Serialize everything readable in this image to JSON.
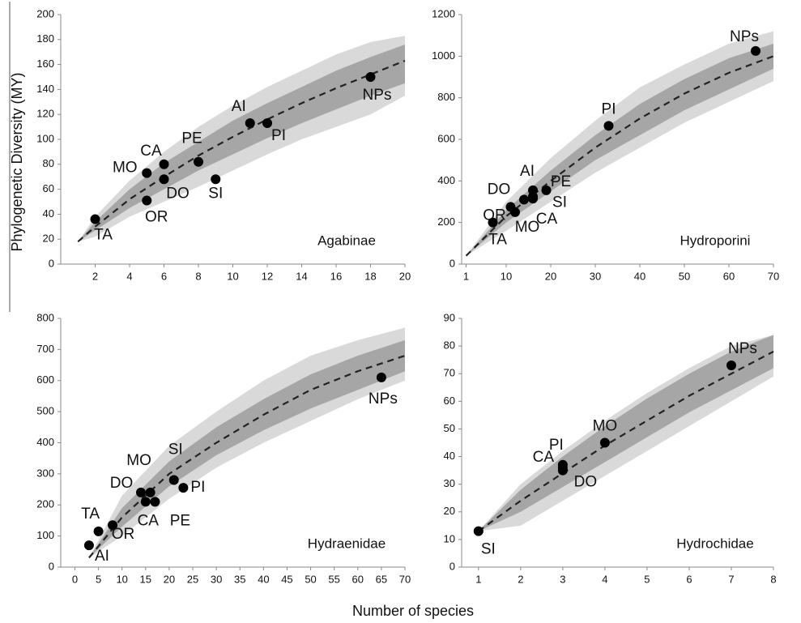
{
  "xlabel": "Number of species",
  "ylabel": "Phylogenetic Diversity (MY)",
  "chart_data": [
    {
      "type": "scatter",
      "title": "Agabinae",
      "labels": [
        "TA",
        "OR",
        "MO",
        "CA",
        "DO",
        "PE",
        "SI",
        "AI",
        "PI",
        "NPs"
      ],
      "x": [
        2,
        5,
        5,
        6,
        6,
        8,
        9,
        11,
        12,
        18
      ],
      "values": [
        36,
        51,
        73,
        80,
        68,
        82,
        68,
        113,
        113,
        150
      ],
      "color": "#000000",
      "xlim": [
        0,
        20
      ],
      "xticks": [
        2,
        4,
        6,
        8,
        10,
        12,
        14,
        16,
        18,
        20
      ],
      "ylim": [
        0,
        200
      ],
      "yticks": [
        0,
        20,
        40,
        60,
        80,
        100,
        120,
        140,
        160,
        180,
        200
      ],
      "curve": {
        "x": [
          1,
          2,
          4,
          6,
          8,
          10,
          12,
          14,
          16,
          18,
          20
        ],
        "values": [
          18,
          30,
          52,
          70,
          87,
          102,
          116,
          129,
          141,
          152,
          163
        ],
        "color": "#222222",
        "inner_band": {
          "lower": [
            18,
            27,
            45,
            60,
            75,
            88,
            101,
            113,
            124,
            135,
            145
          ],
          "upper": [
            18,
            34,
            60,
            81,
            98,
            115,
            129,
            142,
            155,
            166,
            176
          ],
          "color": "#a6a6a6"
        },
        "outer_band": {
          "lower": [
            18,
            22,
            38,
            50,
            62,
            75,
            88,
            100,
            110,
            120,
            135
          ],
          "upper": [
            18,
            38,
            67,
            90,
            110,
            127,
            142,
            155,
            168,
            178,
            183
          ],
          "color": "#d9d9d9"
        }
      }
    },
    {
      "type": "scatter",
      "title": "Hydroporini",
      "labels": [
        "TA",
        "MO",
        "OR",
        "DO",
        "AI",
        "SI",
        "CA",
        "PE",
        "PI",
        "NPs"
      ],
      "x": [
        7,
        12,
        11,
        14,
        16,
        16,
        16,
        19,
        33,
        66
      ],
      "values": [
        200,
        250,
        275,
        310,
        355,
        325,
        315,
        355,
        665,
        1025
      ],
      "color": "#000000",
      "xlim": [
        0,
        70
      ],
      "xticks": [
        1,
        10,
        20,
        30,
        40,
        50,
        60,
        70
      ],
      "ylim": [
        0,
        1200
      ],
      "yticks": [
        0,
        200,
        400,
        600,
        800,
        1000,
        1200
      ],
      "curve": {
        "x": [
          1,
          10,
          20,
          30,
          40,
          50,
          60,
          70
        ],
        "values": [
          40,
          230,
          400,
          560,
          700,
          820,
          920,
          1000
        ],
        "color": "#222222",
        "inner_band": {
          "lower": [
            40,
            200,
            350,
            500,
            620,
            740,
            840,
            940
          ],
          "upper": [
            40,
            260,
            450,
            620,
            770,
            890,
            990,
            1060
          ],
          "color": "#a6a6a6"
        },
        "outer_band": {
          "lower": [
            40,
            160,
            300,
            440,
            560,
            680,
            780,
            880
          ],
          "upper": [
            40,
            300,
            510,
            690,
            850,
            960,
            1060,
            1120
          ],
          "color": "#d9d9d9"
        }
      }
    },
    {
      "type": "scatter",
      "title": "Hydraenidae",
      "labels": [
        "AI",
        "TA",
        "OR",
        "DO",
        "CA",
        "MO",
        "PE",
        "SI",
        "PI",
        "NPs"
      ],
      "x": [
        3,
        5,
        8,
        14,
        15,
        16,
        17,
        21,
        23,
        65
      ],
      "values": [
        70,
        115,
        135,
        240,
        210,
        240,
        210,
        280,
        255,
        610
      ],
      "color": "#000000",
      "xlim": [
        -3,
        70
      ],
      "xticks": [
        0,
        5,
        10,
        15,
        20,
        25,
        30,
        35,
        40,
        45,
        50,
        55,
        60,
        65,
        70
      ],
      "ylim": [
        0,
        800
      ],
      "yticks": [
        0,
        100,
        200,
        300,
        400,
        500,
        600,
        700,
        800
      ],
      "curve": {
        "x": [
          3,
          10,
          20,
          30,
          40,
          50,
          60,
          70
        ],
        "values": [
          30,
          160,
          300,
          400,
          490,
          570,
          630,
          680
        ],
        "color": "#222222",
        "inner_band": {
          "lower": [
            30,
            130,
            260,
            360,
            440,
            510,
            570,
            630
          ],
          "upper": [
            30,
            190,
            340,
            450,
            540,
            620,
            680,
            730
          ],
          "color": "#a6a6a6"
        },
        "outer_band": {
          "lower": [
            30,
            100,
            220,
            320,
            400,
            470,
            540,
            600
          ],
          "upper": [
            30,
            230,
            390,
            500,
            600,
            680,
            730,
            770
          ],
          "color": "#d9d9d9"
        }
      }
    },
    {
      "type": "scatter",
      "title": "Hydrochidae",
      "labels": [
        "SI",
        "PI",
        "CA",
        "DO",
        "MO",
        "NPs"
      ],
      "x": [
        1,
        3,
        3,
        3,
        4,
        7
      ],
      "values": [
        13,
        37,
        36,
        35,
        45,
        73
      ],
      "color": "#000000",
      "xlim": [
        0.6,
        8
      ],
      "xticks": [
        1,
        2,
        3,
        4,
        5,
        6,
        7,
        8
      ],
      "ylim": [
        0,
        90
      ],
      "yticks": [
        0,
        10,
        20,
        30,
        40,
        50,
        60,
        70,
        80,
        90
      ],
      "curve": {
        "x": [
          1,
          2,
          3,
          4,
          5,
          6,
          7,
          8
        ],
        "values": [
          13,
          24,
          34,
          44,
          53,
          62,
          70,
          78
        ],
        "color": "#222222",
        "inner_band": {
          "lower": [
            13,
            20,
            29,
            38,
            47,
            56,
            64,
            72
          ],
          "upper": [
            13,
            28,
            40,
            51,
            61,
            70,
            78,
            84
          ],
          "color": "#a6a6a6"
        },
        "outer_band": {
          "lower": [
            13,
            15,
            24,
            33,
            42,
            51,
            60,
            69
          ],
          "upper": [
            13,
            30,
            42,
            53,
            63,
            72,
            80,
            84
          ],
          "color": "#d9d9d9"
        }
      }
    }
  ]
}
